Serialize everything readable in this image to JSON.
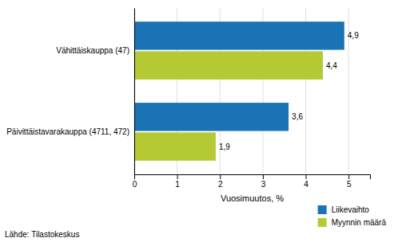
{
  "chart_data": {
    "type": "bar",
    "orientation": "horizontal",
    "categories": [
      "Päivittäistavarakauppa (4711, 472)",
      "Vähittäiskauppa (47)"
    ],
    "series": [
      {
        "name": "Liikevaihto",
        "color": "#1a73b5",
        "values": [
          3.6,
          4.9
        ],
        "value_labels": [
          "3,6",
          "4,9"
        ]
      },
      {
        "name": "Myynnin määrä",
        "color": "#b5c935",
        "values": [
          1.9,
          4.4
        ],
        "value_labels": [
          "1,9",
          "4,4"
        ]
      }
    ],
    "x_label": "Vuosimuutos, %",
    "xlim": [
      0,
      5.5
    ],
    "xticks": [
      0,
      1,
      2,
      3,
      4,
      5
    ],
    "grid": true,
    "legend": "lower right",
    "data_labels": true,
    "annotations": [
      "Lähde: Tilastokeskus"
    ]
  }
}
